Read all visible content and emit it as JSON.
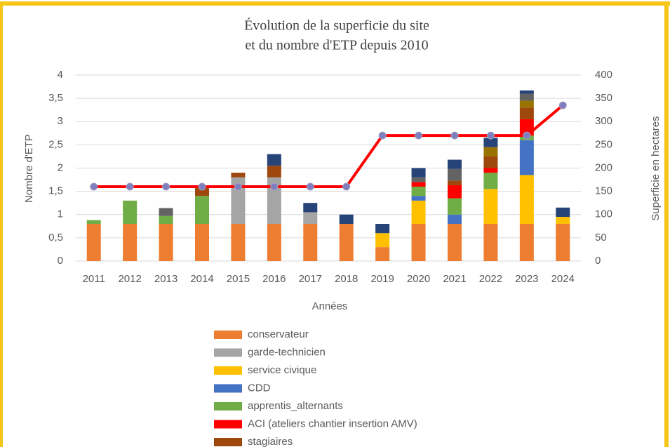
{
  "chart_data": {
    "type": "bar",
    "title": [
      "Évolution  de la superficie du site",
      "et du nombre d'ETP depuis 2010"
    ],
    "xlabel": "Années",
    "ylabel": "Nombre d'ETP",
    "y2label": "Superficie en hectares",
    "categories": [
      "2011",
      "2012",
      "2013",
      "2014",
      "2015",
      "2016",
      "2017",
      "2018",
      "2019",
      "2020",
      "2021",
      "2022",
      "2023",
      "2024"
    ],
    "ylim": [
      0,
      4
    ],
    "yticks": [
      0,
      {
        "value": 0.5,
        "label": "0,5"
      },
      1,
      {
        "value": 1.5,
        "label": "1,5"
      },
      2,
      {
        "value": 2.5,
        "label": "2,5"
      },
      3,
      {
        "value": 3.5,
        "label": "3,5"
      },
      4
    ],
    "y2lim": [
      0,
      400
    ],
    "y2ticks": [
      0,
      50,
      100,
      150,
      200,
      250,
      300,
      350,
      400
    ],
    "grid": true,
    "stacked": true,
    "series": [
      {
        "name": "conservateur",
        "color": "#ED7D31",
        "values": [
          0.8,
          0.8,
          0.8,
          0.8,
          0.8,
          0.8,
          0.8,
          0.8,
          0.3,
          0.8,
          0.8,
          0.8,
          0.8,
          0.8
        ]
      },
      {
        "name": "garde-technicien",
        "color": "#A5A5A5",
        "values": [
          null,
          null,
          null,
          null,
          1.0,
          1.0,
          0.25,
          null,
          null,
          null,
          null,
          null,
          null,
          null
        ]
      },
      {
        "name": "service civique",
        "color": "#FFC000",
        "values": [
          null,
          null,
          null,
          null,
          null,
          null,
          null,
          null,
          0.3,
          0.5,
          null,
          0.75,
          1.05,
          0.15
        ]
      },
      {
        "name": "CDD",
        "color": "#4472C4",
        "values": [
          null,
          null,
          null,
          null,
          null,
          null,
          null,
          null,
          null,
          0.1,
          0.2,
          null,
          0.75,
          null
        ]
      },
      {
        "name": "apprentis_alternants",
        "color": "#70AD47",
        "values": [
          0.08,
          0.5,
          0.17,
          0.6,
          null,
          null,
          null,
          null,
          null,
          0.2,
          0.35,
          0.35,
          0.1,
          null
        ]
      },
      {
        "name": "ACI (ateliers chantier insertion AMV)",
        "color": "#FF0000",
        "values": [
          null,
          null,
          null,
          null,
          null,
          null,
          null,
          null,
          null,
          0.1,
          0.28,
          0.1,
          0.35,
          null
        ]
      },
      {
        "name": "stagiaires",
        "color": "#9E480E",
        "values": [
          null,
          null,
          null,
          0.2,
          0.1,
          0.25,
          null,
          null,
          null,
          null,
          0.1,
          0.25,
          0.25,
          null
        ]
      },
      {
        "color": "#997300",
        "values": [
          null,
          null,
          null,
          null,
          null,
          null,
          null,
          null,
          null,
          null,
          null,
          0.2,
          0.15,
          null
        ]
      },
      {
        "color": "#636363",
        "values": [
          null,
          null,
          0.17,
          null,
          null,
          null,
          null,
          null,
          null,
          0.1,
          0.25,
          null,
          0.15,
          null
        ]
      },
      {
        "color": "#264478",
        "values": [
          null,
          null,
          null,
          null,
          null,
          0.25,
          0.2,
          0.2,
          0.2,
          0.2,
          0.2,
          0.2,
          0.07,
          0.2
        ]
      },
      {
        "type": "line",
        "axis": "y2",
        "color": "#FF0000",
        "values": [
          160,
          160,
          160,
          160,
          160,
          160,
          160,
          160,
          270,
          270,
          270,
          270,
          270,
          335
        ]
      }
    ]
  }
}
